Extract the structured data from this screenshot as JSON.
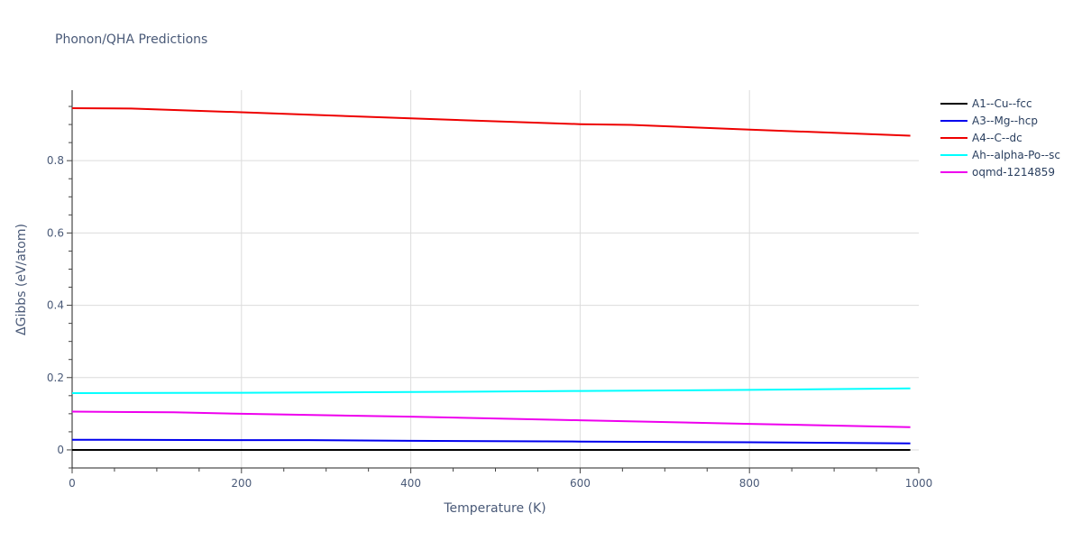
{
  "chart_data": {
    "type": "line",
    "title": "Phonon/QHA Predictions",
    "xlabel": "Temperature (K)",
    "ylabel": "ΔGibbs (eV/atom)",
    "xlim": [
      0,
      1000
    ],
    "ylim": [
      -0.05,
      0.995
    ],
    "x_ticks": [
      0,
      200,
      400,
      600,
      800,
      1000
    ],
    "x_tick_labels": [
      "0",
      "200",
      "400",
      "600",
      "800",
      "1000"
    ],
    "y_ticks": [
      0,
      0.2,
      0.4,
      0.6,
      0.8
    ],
    "y_tick_labels": [
      "0",
      "0.2",
      "0.4",
      "0.6",
      "0.8"
    ],
    "grid": true,
    "legend_position": "top-right",
    "series": [
      {
        "name": "A1--Cu--fcc",
        "color": "#000000",
        "x": [
          0,
          200,
          400,
          600,
          800,
          990
        ],
        "y": [
          0,
          0,
          0,
          0,
          0,
          0
        ]
      },
      {
        "name": "A3--Mg--hcp",
        "color": "#0000ee",
        "x": [
          0,
          200,
          280,
          400,
          600,
          800,
          990
        ],
        "y": [
          0.028,
          0.027,
          0.027,
          0.025,
          0.023,
          0.021,
          0.018
        ]
      },
      {
        "name": "A4--C--dc",
        "color": "#ee0000",
        "x": [
          0,
          70,
          200,
          400,
          600,
          660,
          800,
          990
        ],
        "y": [
          0.945,
          0.944,
          0.934,
          0.917,
          0.901,
          0.899,
          0.886,
          0.869
        ]
      },
      {
        "name": "Ah--alpha-Po--sc",
        "color": "#00ffff",
        "x": [
          0,
          200,
          400,
          600,
          800,
          990
        ],
        "y": [
          0.157,
          0.158,
          0.16,
          0.163,
          0.166,
          0.17
        ]
      },
      {
        "name": "oqmd-1214859",
        "color": "#ee00ee",
        "x": [
          0,
          120,
          200,
          400,
          600,
          800,
          990
        ],
        "y": [
          0.106,
          0.104,
          0.1,
          0.092,
          0.082,
          0.072,
          0.063
        ]
      }
    ]
  }
}
